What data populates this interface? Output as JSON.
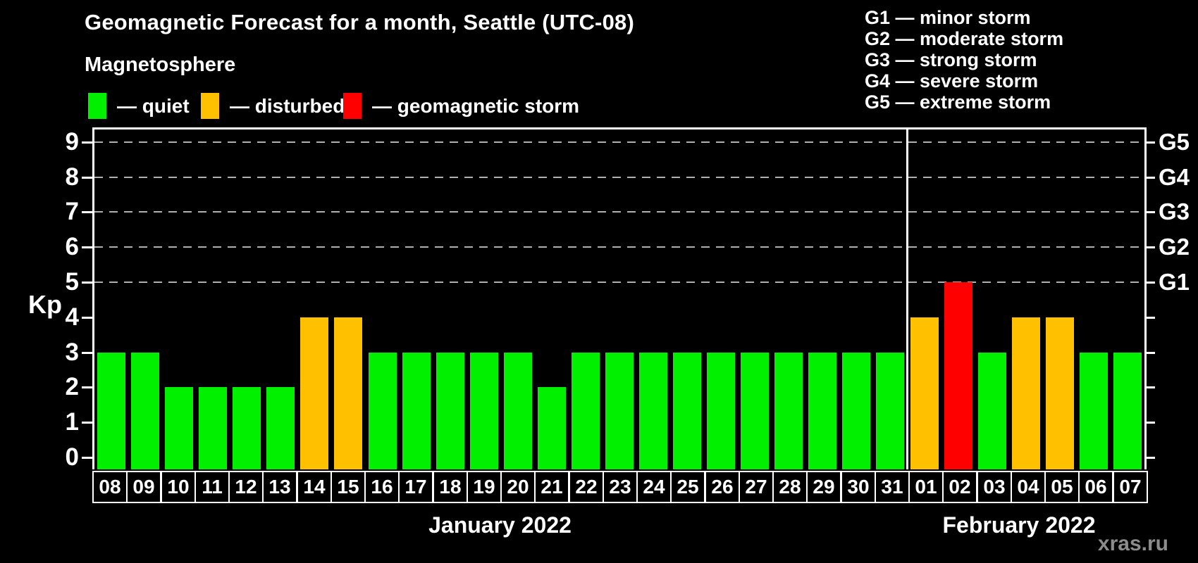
{
  "header": {
    "title": "Geomagnetic Forecast for a month, Seattle (UTC-08)"
  },
  "legend": {
    "title": "Magnetosphere",
    "items": [
      {
        "state": "quiet",
        "label": "— quiet",
        "color": "#00f000"
      },
      {
        "state": "disturbed",
        "label": "— disturbed",
        "color": "#ffc000"
      },
      {
        "state": "storm",
        "label": "— geomagnetic storm",
        "color": "#ff0000"
      }
    ]
  },
  "storm_scale_legend": [
    "G1 — minor storm",
    "G2 — moderate storm",
    "G3 — strong storm",
    "G4 — severe storm",
    "G5 — extreme storm"
  ],
  "watermark": "xras.ru",
  "colors": {
    "quiet": "#00f000",
    "disturbed": "#ffc000",
    "storm": "#ff0000",
    "background": "#000000",
    "axis": "#ffffff",
    "grid": "#b0b0b0",
    "watermark": "#8c8c8c"
  },
  "chart_data": {
    "type": "bar",
    "title": "Geomagnetic Forecast for a month, Seattle (UTC-08)",
    "ylabel": "Kp",
    "ylim": [
      0,
      9
    ],
    "yticks": [
      0,
      1,
      2,
      3,
      4,
      5,
      6,
      7,
      8,
      9
    ],
    "gridlines_at": [
      5,
      6,
      7,
      8,
      9
    ],
    "grid_style": "dashed",
    "legend_position": "top",
    "right_axis_labels": [
      {
        "value": 5,
        "label": "G1"
      },
      {
        "value": 6,
        "label": "G2"
      },
      {
        "value": 7,
        "label": "G3"
      },
      {
        "value": 8,
        "label": "G4"
      },
      {
        "value": 9,
        "label": "G5"
      }
    ],
    "months": [
      {
        "label": "January 2022",
        "days": 24
      },
      {
        "label": "February 2022",
        "days": 7
      }
    ],
    "categories": [
      "08",
      "09",
      "10",
      "11",
      "12",
      "13",
      "14",
      "15",
      "16",
      "17",
      "18",
      "19",
      "20",
      "21",
      "22",
      "23",
      "24",
      "25",
      "26",
      "27",
      "28",
      "29",
      "30",
      "31",
      "01",
      "02",
      "03",
      "04",
      "05",
      "06",
      "07"
    ],
    "values": [
      3,
      3,
      2,
      2,
      2,
      2,
      4,
      4,
      3,
      3,
      3,
      3,
      3,
      2,
      3,
      3,
      3,
      3,
      3,
      3,
      3,
      3,
      3,
      3,
      4,
      5,
      3,
      4,
      4,
      3,
      3
    ],
    "states": [
      "quiet",
      "quiet",
      "quiet",
      "quiet",
      "quiet",
      "quiet",
      "disturbed",
      "disturbed",
      "quiet",
      "quiet",
      "quiet",
      "quiet",
      "quiet",
      "quiet",
      "quiet",
      "quiet",
      "quiet",
      "quiet",
      "quiet",
      "quiet",
      "quiet",
      "quiet",
      "quiet",
      "quiet",
      "disturbed",
      "storm",
      "quiet",
      "disturbed",
      "disturbed",
      "quiet",
      "quiet"
    ]
  }
}
